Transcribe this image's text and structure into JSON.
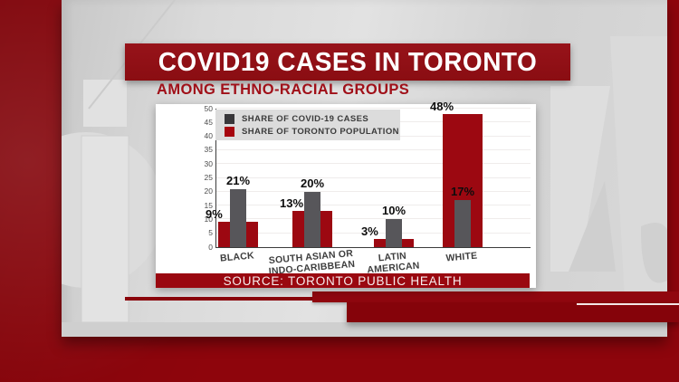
{
  "title_banner": "COVID19 CASES IN TORONTO",
  "subtitle": "AMONG ETHNO-RACIAL GROUPS",
  "source_banner": "SOURCE:  TORONTO PUBLIC HEALTH",
  "colors": {
    "outer_red": "#8e050c",
    "banner_red": "#8e0f14",
    "subtitle_red": "#a01019",
    "source_bg": "#9a0810",
    "legend_bg": "#dcdcdc",
    "card_bg": "#ffffff",
    "accent_line": "#f2e6e6"
  },
  "chart_data": {
    "type": "bar",
    "title": "COVID19 CASES IN TORONTO - AMONG ETHNO-RACIAL GROUPS",
    "categories": [
      [
        "BLACK"
      ],
      [
        "SOUTH ASIAN OR",
        "INDO-CARIBBEAN"
      ],
      [
        "LATIN",
        "AMERICAN"
      ],
      [
        "WHITE"
      ]
    ],
    "series": [
      {
        "name": "SHARE OF COVID-19 CASES",
        "color": "#57565a",
        "legend_color": "#38373a",
        "values": [
          21,
          20,
          10,
          17
        ]
      },
      {
        "name": "SHARE OF TORONTO POPULATION",
        "color": "#9c0811",
        "legend_color": "#a6060f",
        "values": [
          9,
          13,
          3,
          48
        ]
      }
    ],
    "xlabel": "",
    "ylabel": "",
    "ylim": [
      0,
      50
    ],
    "ytick_step": 5,
    "grid": true,
    "legend_position": "top-left",
    "layout_note": "wide population bars behind narrow cases bars, values shown as % labels",
    "source": "TORONTO PUBLIC HEALTH"
  }
}
